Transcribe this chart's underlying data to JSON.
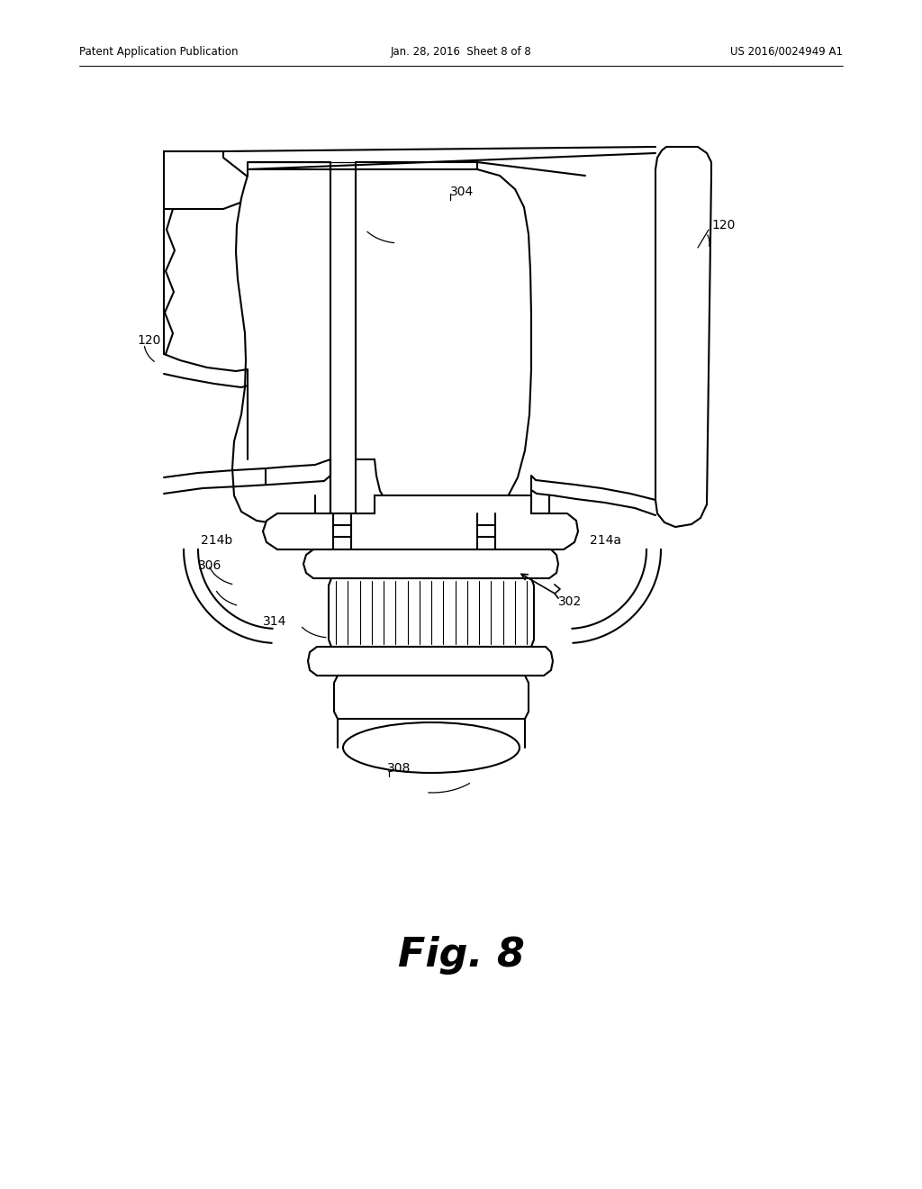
{
  "bg_color": "#ffffff",
  "line_color": "#000000",
  "header_left": "Patent Application Publication",
  "header_mid": "Jan. 28, 2016  Sheet 8 of 8",
  "header_right": "US 2016/0024949 A1",
  "fig_label": "Fig. 8",
  "lw": 1.5,
  "lw_thin": 0.9
}
